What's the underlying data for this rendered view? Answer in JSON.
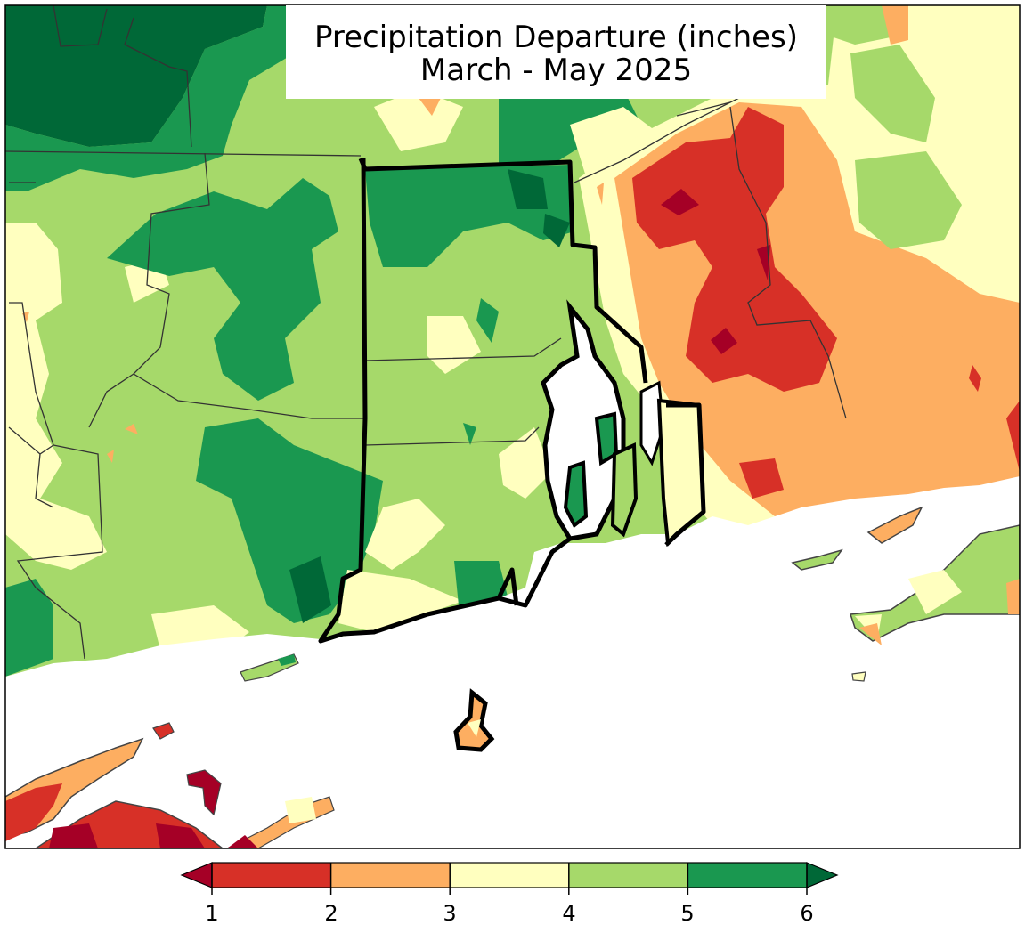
{
  "title": {
    "line1": "Precipitation Departure (inches)",
    "line2": "March - May 2025"
  },
  "legend": {
    "ticks": [
      "1",
      "2",
      "3",
      "4",
      "5",
      "6"
    ],
    "bins": [
      {
        "from": 1,
        "to": 2,
        "color": "#d73027"
      },
      {
        "from": 2,
        "to": 3,
        "color": "#fdae61"
      },
      {
        "from": 3,
        "to": 4,
        "color": "#ffffbf"
      },
      {
        "from": 4,
        "to": 5,
        "color": "#a6d96a"
      },
      {
        "from": 5,
        "to": 6,
        "color": "#1a9850"
      }
    ],
    "under_color": "#a50026",
    "over_color": "#006837"
  },
  "colors": {
    "ocean": "#ffffff",
    "state_border": "#000000",
    "county_border": "#333333"
  }
}
